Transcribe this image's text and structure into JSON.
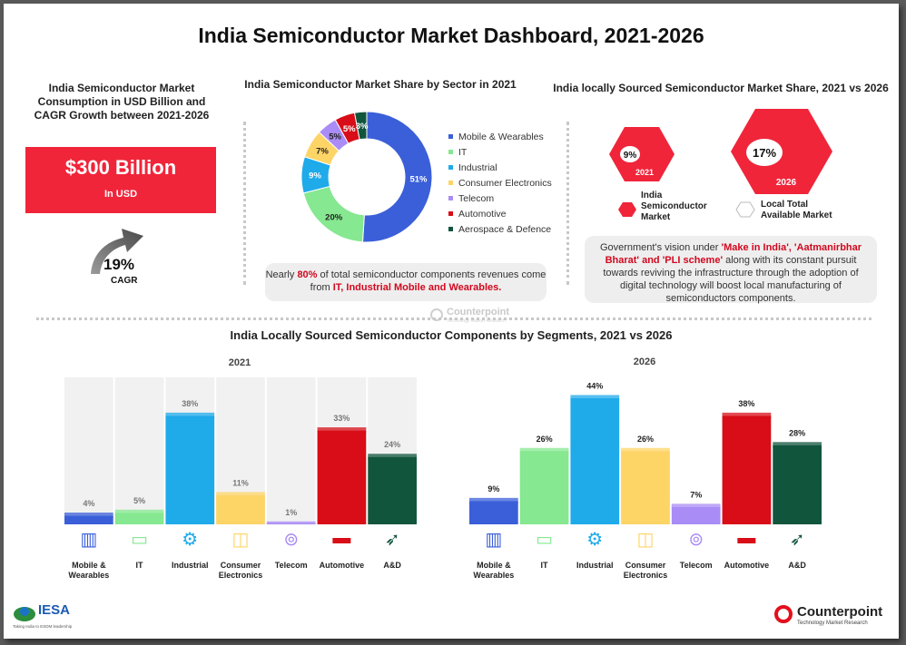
{
  "title": "India Semiconductor Market Dashboard, 2021-2026",
  "consumption": {
    "title": "India Semiconductor Market Consumption in USD Billion and CAGR Growth between 2021-2026",
    "value": "$300 Billion",
    "unit": "In USD",
    "cagr_value": "19%",
    "cagr_label": "CAGR"
  },
  "sector_share": {
    "title": "India Semiconductor Market Share by Sector in 2021",
    "callout_prefix": "Nearly ",
    "callout_pct": "80%",
    "callout_mid": " of total semiconductor components revenues come from ",
    "callout_emph": "IT, Industrial Mobile and Wearables."
  },
  "local_share": {
    "title": "India locally Sourced Semiconductor Market Share, 2021 vs 2026",
    "hex_2021_value": "9%",
    "hex_2021_year": "2021",
    "hex_2026_value": "17%",
    "hex_2026_year": "2026",
    "legend_india": "India Semiconductor Market",
    "legend_local": "Local Total Available Market",
    "note_prefix": "Government's vision under ",
    "note_emph1": "'Make in India', 'Aatmanirbhar Bharat' and 'PLI scheme'",
    "note_suffix": " along with its constant pursuit towards reviving the infrastructure through the adoption of digital technology will boost local manufacturing of semiconductors components."
  },
  "segments": {
    "title": "India Locally Sourced Semiconductor Components by Segments, 2021 vs 2026",
    "year_2021": "2021",
    "year_2026": "2026"
  },
  "icons": [
    "tablet-icon",
    "monitor-icon",
    "robot-arm-icon",
    "devices-icon",
    "tower-icon",
    "car-icon",
    "rocket-icon"
  ],
  "brand": {
    "counterpoint": "Counterpoint",
    "counterpoint_sub": "Technology Market Research",
    "iesa": "IESA",
    "iesa_sub": "Taking India to ESDM leadership"
  },
  "colors": {
    "mobile": "#3a5fd9",
    "it": "#86e890",
    "industrial": "#1faaea",
    "consumer": "#fdd466",
    "telecom": "#a98cf5",
    "automotive": "#d80d17",
    "aerospace": "#11553d",
    "accent_red": "#f0253a"
  },
  "chart_data": [
    {
      "type": "pie",
      "title": "India Semiconductor Market Share by Sector in 2021",
      "categories": [
        "Mobile & Wearables",
        "IT",
        "Industrial",
        "Consumer Electronics",
        "Telecom",
        "Automotive",
        "Aerospace & Defence"
      ],
      "values": [
        51,
        20,
        9,
        7,
        5,
        5,
        3
      ],
      "labels": [
        "51%",
        "20%",
        "9%",
        "7%",
        "5%",
        "5%",
        "3%"
      ],
      "legend": "right"
    },
    {
      "type": "bar",
      "title": "2021",
      "categories": [
        "Mobile & Wearables",
        "IT",
        "Industrial",
        "Consumer Electronics",
        "Telecom",
        "Automotive",
        "A&D"
      ],
      "values": [
        4,
        5,
        38,
        11,
        1,
        33,
        24
      ],
      "labels": [
        "4%",
        "5%",
        "38%",
        "11%",
        "1%",
        "33%",
        "24%"
      ],
      "ylim": [
        0,
        50
      ],
      "grid": false
    },
    {
      "type": "bar",
      "title": "2026",
      "categories": [
        "Mobile & Wearables",
        "IT",
        "Industrial",
        "Consumer Electronics",
        "Telecom",
        "Automotive",
        "A&D"
      ],
      "values": [
        9,
        26,
        44,
        26,
        7,
        38,
        28
      ],
      "labels": [
        "9%",
        "26%",
        "44%",
        "26%",
        "7%",
        "38%",
        "28%"
      ],
      "ylim": [
        0,
        50
      ],
      "grid": false
    }
  ]
}
